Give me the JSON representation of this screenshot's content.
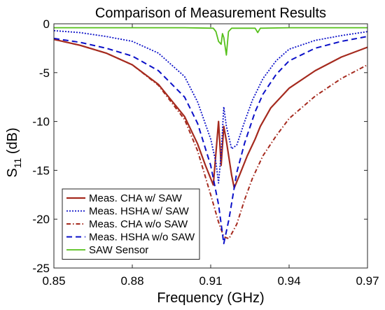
{
  "chart_data": {
    "type": "line",
    "title": "Comparison of Measurement Results",
    "xlabel": "Frequency (GHz)",
    "ylabel": {
      "base": "S",
      "sub": "11",
      "rest": " (dB)"
    },
    "xlim": [
      0.85,
      0.97
    ],
    "ylim": [
      -25,
      0
    ],
    "xticks": [
      0.85,
      0.88,
      0.91,
      0.94,
      0.97
    ],
    "xtick_labels": [
      "0.85",
      "0.88",
      "0.91",
      "0.94",
      "0.97"
    ],
    "yticks": [
      0,
      -5,
      -10,
      -15,
      -20,
      -25
    ],
    "ytick_labels": [
      "0",
      "-5",
      "-10",
      "-15",
      "-20",
      "-25"
    ],
    "grid": false,
    "legend_position": "lower-left",
    "series": [
      {
        "name": "Meas. CHA w/ SAW",
        "color": "#a52a1e",
        "dash": "solid",
        "width": 2.2,
        "points": [
          [
            0.85,
            -1.6
          ],
          [
            0.86,
            -2.2
          ],
          [
            0.87,
            -3.0
          ],
          [
            0.88,
            -4.2
          ],
          [
            0.89,
            -6.2
          ],
          [
            0.9,
            -9.5
          ],
          [
            0.905,
            -12.3
          ],
          [
            0.908,
            -14.5
          ],
          [
            0.911,
            -16.5
          ],
          [
            0.912,
            -13.2
          ],
          [
            0.913,
            -10.0
          ],
          [
            0.914,
            -14.5
          ],
          [
            0.915,
            -10.5
          ],
          [
            0.916,
            -12.0
          ],
          [
            0.918,
            -15.5
          ],
          [
            0.919,
            -16.8
          ],
          [
            0.921,
            -15.5
          ],
          [
            0.924,
            -13.5
          ],
          [
            0.927,
            -11.8
          ],
          [
            0.929,
            -10.5
          ],
          [
            0.933,
            -8.6
          ],
          [
            0.94,
            -6.6
          ],
          [
            0.95,
            -4.8
          ],
          [
            0.96,
            -3.4
          ],
          [
            0.97,
            -2.4
          ]
        ]
      },
      {
        "name": "Meas. HSHA w/ SAW",
        "color": "#0b10c8",
        "dash": "2,2",
        "width": 1.8,
        "points": [
          [
            0.85,
            -0.7
          ],
          [
            0.86,
            -0.9
          ],
          [
            0.87,
            -1.3
          ],
          [
            0.88,
            -1.8
          ],
          [
            0.89,
            -3.0
          ],
          [
            0.9,
            -5.4
          ],
          [
            0.905,
            -8.0
          ],
          [
            0.91,
            -11.8
          ],
          [
            0.912,
            -14.2
          ],
          [
            0.913,
            -16.3
          ],
          [
            0.914,
            -13.3
          ],
          [
            0.915,
            -8.5
          ],
          [
            0.916,
            -10.5
          ],
          [
            0.918,
            -12.8
          ],
          [
            0.92,
            -12.4
          ],
          [
            0.923,
            -10.0
          ],
          [
            0.926,
            -7.8
          ],
          [
            0.93,
            -5.6
          ],
          [
            0.935,
            -3.8
          ],
          [
            0.94,
            -2.6
          ],
          [
            0.95,
            -1.7
          ],
          [
            0.96,
            -1.2
          ],
          [
            0.97,
            -0.8
          ]
        ]
      },
      {
        "name": "Meas. CHA w/o SAW",
        "color": "#a52a1e",
        "dash": "6,3,1.5,3",
        "width": 2.0,
        "points": [
          [
            0.85,
            -1.6
          ],
          [
            0.86,
            -2.2
          ],
          [
            0.87,
            -3.0
          ],
          [
            0.88,
            -4.2
          ],
          [
            0.89,
            -6.3
          ],
          [
            0.9,
            -9.8
          ],
          [
            0.905,
            -13.0
          ],
          [
            0.91,
            -17.5
          ],
          [
            0.913,
            -20.3
          ],
          [
            0.915,
            -21.8
          ],
          [
            0.917,
            -22.0
          ],
          [
            0.92,
            -20.5
          ],
          [
            0.923,
            -18.0
          ],
          [
            0.926,
            -15.8
          ],
          [
            0.93,
            -13.5
          ],
          [
            0.935,
            -11.5
          ],
          [
            0.94,
            -9.7
          ],
          [
            0.95,
            -7.4
          ],
          [
            0.96,
            -5.6
          ],
          [
            0.97,
            -4.2
          ]
        ]
      },
      {
        "name": "Meas. HSHA w/o SAW",
        "color": "#0b10c8",
        "dash": "8,5",
        "width": 2.0,
        "points": [
          [
            0.85,
            -1.5
          ],
          [
            0.86,
            -1.9
          ],
          [
            0.87,
            -2.5
          ],
          [
            0.88,
            -3.3
          ],
          [
            0.89,
            -4.8
          ],
          [
            0.9,
            -7.5
          ],
          [
            0.905,
            -10.2
          ],
          [
            0.91,
            -14.5
          ],
          [
            0.913,
            -18.5
          ],
          [
            0.915,
            -22.5
          ],
          [
            0.917,
            -20.0
          ],
          [
            0.92,
            -15.2
          ],
          [
            0.923,
            -12.2
          ],
          [
            0.927,
            -9.0
          ],
          [
            0.93,
            -7.2
          ],
          [
            0.935,
            -5.2
          ],
          [
            0.94,
            -3.8
          ],
          [
            0.95,
            -2.5
          ],
          [
            0.96,
            -1.8
          ],
          [
            0.97,
            -1.3
          ]
        ]
      },
      {
        "name": "SAW Sensor",
        "color": "#55c01a",
        "dash": "solid",
        "width": 1.8,
        "points": [
          [
            0.85,
            -0.4
          ],
          [
            0.9,
            -0.4
          ],
          [
            0.911,
            -0.45
          ],
          [
            0.912,
            -0.8
          ],
          [
            0.913,
            -1.8
          ],
          [
            0.914,
            -2.1
          ],
          [
            0.9145,
            -1.0
          ],
          [
            0.915,
            -1.4
          ],
          [
            0.916,
            -3.2
          ],
          [
            0.9168,
            -0.8
          ],
          [
            0.918,
            -0.45
          ],
          [
            0.927,
            -0.45
          ],
          [
            0.928,
            -0.9
          ],
          [
            0.929,
            -0.45
          ],
          [
            0.94,
            -0.4
          ],
          [
            0.97,
            -0.4
          ]
        ]
      }
    ]
  }
}
